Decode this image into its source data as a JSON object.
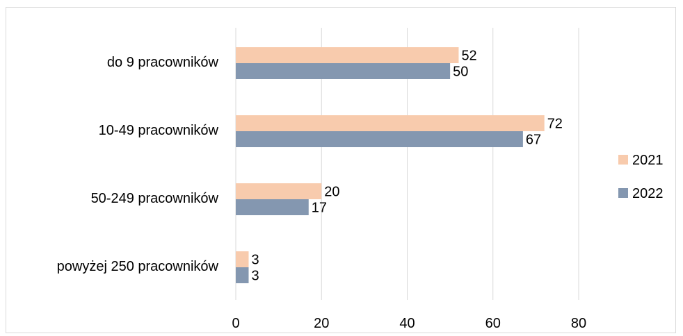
{
  "chart_data": {
    "type": "bar",
    "orientation": "horizontal",
    "categories": [
      "do 9 pracowników",
      "10-49 pracowników",
      "50-249 pracowników",
      "powyżej 250 pracowników"
    ],
    "series": [
      {
        "name": "2021",
        "values": [
          52,
          72,
          20,
          3
        ],
        "color": "#f8cbad"
      },
      {
        "name": "2022",
        "values": [
          50,
          67,
          17,
          3
        ],
        "color": "#8497b0"
      }
    ],
    "xlim": [
      0,
      80
    ],
    "xticks": [
      "0",
      "20",
      "40",
      "60",
      "80"
    ],
    "title": "",
    "xlabel": "",
    "ylabel": "",
    "grid": true,
    "gridline_color": "#d9d9d9",
    "legend_position": "right",
    "data_labels": true
  }
}
